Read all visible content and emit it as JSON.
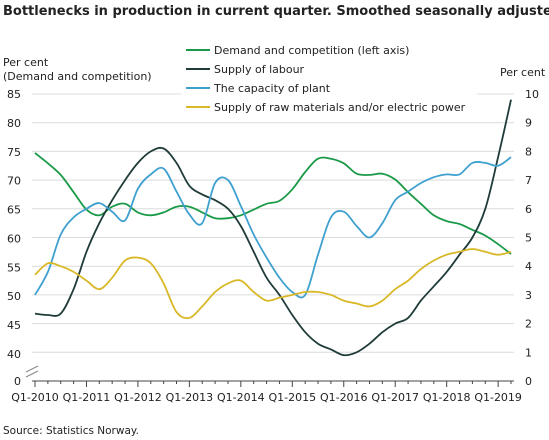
{
  "chart_data": {
    "type": "line",
    "title": "Bottlenecks  in production  in current  quarter. Smoothed  seasonally adjusted",
    "source": "Source: Statistics Norway.",
    "ylabel_left": [
      "Per cent",
      "(Demand and competition)"
    ],
    "ylabel_right": "Per cent",
    "y_left": {
      "min": 35,
      "max": 85,
      "ticks": [
        "85",
        "80",
        "75",
        "70",
        "65",
        "60",
        "55",
        "50",
        "45",
        "40"
      ],
      "zero_label": "0",
      "axis_break": true
    },
    "y_right": {
      "min": 0,
      "max": 10,
      "ticks": [
        "10",
        "9",
        "8",
        "7",
        "6",
        "5",
        "4",
        "3",
        "2",
        "1",
        "0"
      ]
    },
    "x_ticks": [
      "Q1-2010",
      "Q1-2011",
      "Q1-2012",
      "Q1-2013",
      "Q1-2014",
      "Q1-2015",
      "Q1-2016",
      "Q1-2017",
      "Q1-2018",
      "Q1-2019"
    ],
    "grid": "horizontal",
    "legend_position": "top",
    "series": [
      {
        "name": "Demand and competition (left axis)",
        "axis": "left",
        "color": "#1a9a48",
        "values": [
          74.8,
          73.0,
          71.0,
          68.0,
          65.0,
          64.0,
          65.5,
          66.0,
          64.5,
          64.0,
          64.5,
          65.5,
          65.5,
          64.5,
          63.5,
          63.5,
          64.0,
          65.0,
          66.0,
          66.5,
          68.5,
          71.5,
          73.8,
          73.8,
          73.0,
          71.2,
          71.0,
          71.2,
          70.2,
          68.0,
          66.0,
          64.0,
          63.0,
          62.5,
          61.5,
          60.5,
          59.0,
          57.3
        ]
      },
      {
        "name": "Supply of labour",
        "axis": "right",
        "color": "#1f3c3a",
        "values": [
          2.35,
          2.3,
          2.35,
          3.2,
          4.5,
          5.5,
          6.3,
          7.0,
          7.6,
          8.0,
          8.1,
          7.6,
          6.8,
          6.5,
          6.3,
          6.0,
          5.4,
          4.5,
          3.6,
          3.0,
          2.3,
          1.7,
          1.3,
          1.1,
          0.9,
          1.0,
          1.3,
          1.7,
          2.0,
          2.2,
          2.8,
          3.3,
          3.8,
          4.4,
          5.0,
          6.0,
          7.8,
          9.8
        ]
      },
      {
        "name": "The capacity of plant",
        "axis": "right",
        "color": "#3fa0d0",
        "values": [
          3.0,
          3.8,
          5.1,
          5.7,
          6.0,
          6.2,
          5.9,
          5.6,
          6.7,
          7.2,
          7.4,
          6.6,
          5.8,
          5.5,
          6.9,
          7.0,
          6.1,
          5.1,
          4.3,
          3.6,
          3.1,
          3.0,
          4.4,
          5.7,
          5.9,
          5.4,
          5.0,
          5.5,
          6.3,
          6.6,
          6.9,
          7.1,
          7.2,
          7.2,
          7.6,
          7.6,
          7.5,
          7.8
        ]
      },
      {
        "name": "Supply of raw materials and/or electric power",
        "axis": "right",
        "color": "#d9b827",
        "values": [
          3.7,
          4.1,
          4.0,
          3.8,
          3.5,
          3.2,
          3.6,
          4.2,
          4.3,
          4.1,
          3.4,
          2.4,
          2.2,
          2.6,
          3.1,
          3.4,
          3.5,
          3.1,
          2.8,
          2.9,
          3.0,
          3.1,
          3.1,
          3.0,
          2.8,
          2.7,
          2.6,
          2.8,
          3.2,
          3.5,
          3.9,
          4.2,
          4.4,
          4.5,
          4.6,
          4.5,
          4.4,
          4.5
        ]
      }
    ]
  }
}
